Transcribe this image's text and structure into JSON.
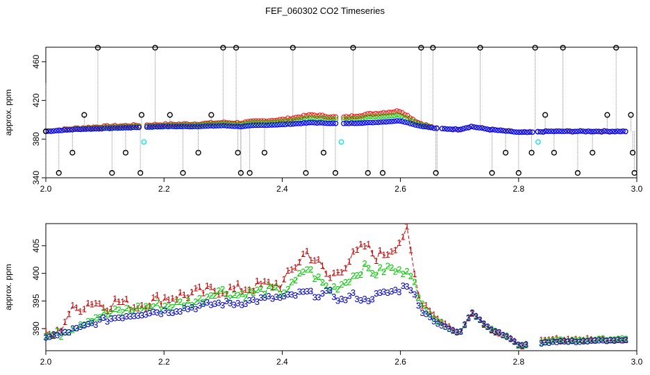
{
  "title": "FEF_060302  CO2 Timeseries",
  "chart_data": [
    {
      "type": "scatter",
      "ylabel": "approx. ppm",
      "xlim": [
        2.0,
        3.0
      ],
      "ylim": [
        340,
        475
      ],
      "xticks": [
        2.0,
        2.2,
        2.4,
        2.6,
        2.8,
        3.0
      ],
      "xtick_labels": [
        "2.0",
        "2.2",
        "2.4",
        "2.6",
        "2.8",
        "3.0"
      ],
      "yticks": [
        340,
        380,
        420,
        460
      ],
      "ytick_labels": [
        "340",
        "380",
        "420",
        "460"
      ],
      "grid": false,
      "colors": {
        "series1": "#ff0000",
        "series2": "#00cc00",
        "series3": "#0000ff",
        "outlier": "#000000",
        "cyan": "#00e5e5"
      },
      "baseline": [
        [
          2.0,
          388
        ],
        [
          2.05,
          390
        ],
        [
          2.1,
          391
        ],
        [
          2.15,
          392
        ],
        [
          2.2,
          393
        ],
        [
          2.25,
          393
        ],
        [
          2.3,
          394
        ],
        [
          2.33,
          393
        ],
        [
          2.35,
          394
        ],
        [
          2.4,
          395
        ],
        [
          2.45,
          397
        ],
        [
          2.5,
          396
        ],
        [
          2.55,
          397
        ],
        [
          2.6,
          399
        ],
        [
          2.63,
          394
        ],
        [
          2.66,
          391
        ],
        [
          2.7,
          390
        ],
        [
          2.72,
          393
        ],
        [
          2.75,
          390
        ],
        [
          2.8,
          387
        ],
        [
          2.82,
          387
        ],
        [
          2.85,
          388
        ],
        [
          2.9,
          388
        ],
        [
          2.95,
          388
        ],
        [
          2.98,
          388
        ]
      ],
      "series1_offsets": [
        [
          2.0,
          0
        ],
        [
          2.1,
          2
        ],
        [
          2.2,
          2
        ],
        [
          2.3,
          3
        ],
        [
          2.4,
          5
        ],
        [
          2.45,
          8
        ],
        [
          2.5,
          6
        ],
        [
          2.55,
          9
        ],
        [
          2.6,
          10
        ],
        [
          2.63,
          3
        ],
        [
          2.66,
          0
        ],
        [
          3.0,
          0
        ]
      ],
      "series2_offsets": [
        [
          2.0,
          0
        ],
        [
          2.1,
          1
        ],
        [
          2.2,
          1
        ],
        [
          2.3,
          2
        ],
        [
          2.4,
          3
        ],
        [
          2.45,
          5
        ],
        [
          2.5,
          4
        ],
        [
          2.55,
          6
        ],
        [
          2.6,
          6
        ],
        [
          2.63,
          2
        ],
        [
          2.66,
          0
        ],
        [
          3.0,
          0
        ]
      ],
      "outlier_x": [
        2.0,
        2.022,
        2.045,
        2.065,
        2.088,
        2.112,
        2.135,
        2.16,
        2.162,
        2.185,
        2.21,
        2.232,
        2.258,
        2.28,
        2.3,
        2.322,
        2.325,
        2.33,
        2.345,
        2.37,
        2.418,
        2.44,
        2.47,
        2.49,
        2.52,
        2.545,
        2.57,
        2.635,
        2.655,
        2.66,
        2.735,
        2.755,
        2.778,
        2.8,
        2.822,
        2.828,
        2.845,
        2.86,
        2.875,
        2.9,
        2.925,
        2.95,
        2.965,
        2.99,
        2.993,
        2.996
      ],
      "outlier_y": [
        388,
        345,
        366,
        405,
        477,
        345,
        366,
        345,
        405,
        477,
        405,
        345,
        366,
        405,
        477,
        477,
        366,
        345,
        345,
        366,
        477,
        345,
        366,
        345,
        477,
        345,
        345,
        477,
        477,
        345,
        477,
        345,
        366,
        345,
        366,
        477,
        405,
        366,
        477,
        345,
        366,
        405,
        477,
        405,
        366,
        345
      ],
      "spikes_to_bottom": [
        2.0,
        2.33,
        2.662
      ],
      "cyan_points": [
        [
          2.166,
          377
        ],
        [
          2.5,
          377
        ],
        [
          2.833,
          377
        ]
      ],
      "gaps": [
        [
          2.162,
          2.168
        ],
        [
          2.495,
          2.5
        ],
        [
          2.662,
          2.67
        ],
        [
          2.826,
          2.832
        ]
      ]
    },
    {
      "type": "line",
      "ylabel": "approx. ppm",
      "xlim": [
        2.0,
        3.0
      ],
      "ylim": [
        386,
        409
      ],
      "xticks": [
        2.0,
        2.2,
        2.4,
        2.6,
        2.8,
        3.0
      ],
      "xtick_labels": [
        "2.0",
        "2.2",
        "2.4",
        "2.6",
        "2.8",
        "3.0"
      ],
      "yticks": [
        390,
        395,
        400,
        405
      ],
      "ytick_labels": [
        "390",
        "395",
        "400",
        "405"
      ],
      "grid": false,
      "series": [
        {
          "label": "1",
          "color": "#cc0000",
          "y": [
            [
              2.0,
              388.6
            ],
            [
              2.02,
              389
            ],
            [
              2.04,
              393
            ],
            [
              2.06,
              394
            ],
            [
              2.08,
              395
            ],
            [
              2.1,
              394
            ],
            [
              2.12,
              395
            ],
            [
              2.15,
              394
            ],
            [
              2.18,
              395
            ],
            [
              2.2,
              395.5
            ],
            [
              2.23,
              396
            ],
            [
              2.26,
              396.5
            ],
            [
              2.29,
              397
            ],
            [
              2.32,
              397
            ],
            [
              2.35,
              397.5
            ],
            [
              2.38,
              398
            ],
            [
              2.4,
              398
            ],
            [
              2.42,
              401
            ],
            [
              2.44,
              404
            ],
            [
              2.46,
              402
            ],
            [
              2.48,
              399
            ],
            [
              2.5,
              401
            ],
            [
              2.52,
              403
            ],
            [
              2.54,
              405
            ],
            [
              2.56,
              403
            ],
            [
              2.58,
              404
            ],
            [
              2.6,
              406
            ],
            [
              2.61,
              408
            ],
            [
              2.62,
              402
            ],
            [
              2.63,
              396
            ],
            [
              2.66,
              392
            ],
            [
              2.7,
              389
            ],
            [
              2.72,
              393
            ],
            [
              2.75,
              390
            ],
            [
              2.78,
              388.5
            ],
            [
              2.8,
              387
            ],
            [
              2.82,
              387
            ],
            [
              2.83,
              387.5
            ],
            [
              2.86,
              388
            ],
            [
              2.9,
              388
            ],
            [
              2.95,
              388
            ],
            [
              2.985,
              388
            ]
          ]
        },
        {
          "label": "2",
          "color": "#00cc00",
          "y": [
            [
              2.0,
              388.6
            ],
            [
              2.02,
              388.8
            ],
            [
              2.04,
              390
            ],
            [
              2.06,
              391
            ],
            [
              2.08,
              392
            ],
            [
              2.1,
              392.5
            ],
            [
              2.12,
              393
            ],
            [
              2.15,
              393.5
            ],
            [
              2.18,
              394
            ],
            [
              2.2,
              394
            ],
            [
              2.23,
              394.5
            ],
            [
              2.26,
              395
            ],
            [
              2.29,
              397
            ],
            [
              2.32,
              396
            ],
            [
              2.35,
              396.5
            ],
            [
              2.38,
              397
            ],
            [
              2.4,
              396.5
            ],
            [
              2.42,
              398
            ],
            [
              2.44,
              401
            ],
            [
              2.46,
              399
            ],
            [
              2.48,
              397
            ],
            [
              2.5,
              398
            ],
            [
              2.52,
              399.5
            ],
            [
              2.54,
              401
            ],
            [
              2.56,
              400
            ],
            [
              2.58,
              401
            ],
            [
              2.6,
              400
            ],
            [
              2.61,
              401
            ],
            [
              2.62,
              400
            ],
            [
              2.63,
              395
            ],
            [
              2.66,
              391.5
            ],
            [
              2.7,
              389
            ],
            [
              2.72,
              393
            ],
            [
              2.75,
              390
            ],
            [
              2.78,
              388.5
            ],
            [
              2.8,
              387
            ],
            [
              2.82,
              387
            ],
            [
              2.83,
              387.3
            ],
            [
              2.86,
              387.8
            ],
            [
              2.9,
              387.8
            ],
            [
              2.95,
              388
            ],
            [
              2.985,
              388
            ]
          ]
        },
        {
          "label": "3",
          "color": "#0000cc",
          "y": [
            [
              2.0,
              388.6
            ],
            [
              2.02,
              388.7
            ],
            [
              2.04,
              389.5
            ],
            [
              2.06,
              390
            ],
            [
              2.08,
              391
            ],
            [
              2.1,
              391.5
            ],
            [
              2.12,
              392
            ],
            [
              2.15,
              392.5
            ],
            [
              2.18,
              393
            ],
            [
              2.2,
              393
            ],
            [
              2.23,
              393.5
            ],
            [
              2.26,
              394
            ],
            [
              2.29,
              394.5
            ],
            [
              2.32,
              394.5
            ],
            [
              2.35,
              395
            ],
            [
              2.38,
              395.5
            ],
            [
              2.4,
              395.5
            ],
            [
              2.42,
              396
            ],
            [
              2.44,
              396.5
            ],
            [
              2.46,
              396
            ],
            [
              2.48,
              396.5
            ],
            [
              2.5,
              395
            ],
            [
              2.52,
              396
            ],
            [
              2.54,
              395
            ],
            [
              2.56,
              396
            ],
            [
              2.58,
              396.5
            ],
            [
              2.6,
              397
            ],
            [
              2.61,
              398
            ],
            [
              2.62,
              397
            ],
            [
              2.63,
              394
            ],
            [
              2.66,
              391
            ],
            [
              2.7,
              389
            ],
            [
              2.72,
              393
            ],
            [
              2.75,
              390
            ],
            [
              2.78,
              388.5
            ],
            [
              2.8,
              387
            ],
            [
              2.82,
              387
            ],
            [
              2.83,
              387.2
            ],
            [
              2.86,
              387.6
            ],
            [
              2.9,
              387.6
            ],
            [
              2.95,
              387.8
            ],
            [
              2.985,
              387.8
            ]
          ]
        }
      ],
      "gap": [
        2.818,
        2.832
      ]
    }
  ]
}
